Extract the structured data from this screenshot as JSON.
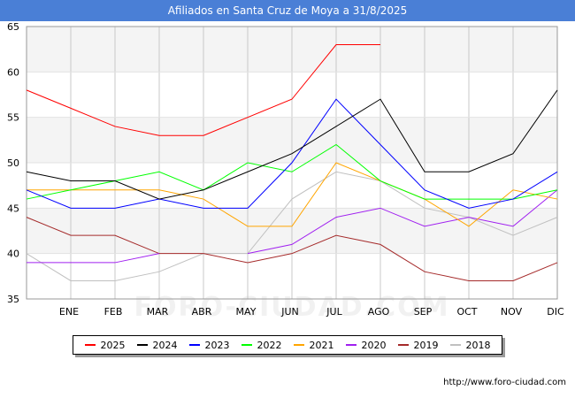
{
  "window": {
    "title": "Afiliados en Santa Cruz de Moya a 31/8/2025"
  },
  "watermark": "FORO-CIUDAD.COM",
  "source": "http://www.foro-ciudad.com",
  "chart_data": {
    "type": "line",
    "title": "Afiliados en Santa Cruz de Moya a 31/8/2025",
    "xlabel": "",
    "ylabel": "",
    "categories": [
      "",
      "ENE",
      "FEB",
      "MAR",
      "ABR",
      "MAY",
      "JUN",
      "JUL",
      "AGO",
      "SEP",
      "OCT",
      "NOV",
      "DIC"
    ],
    "ylim": [
      35,
      65
    ],
    "yticks": [
      35,
      40,
      45,
      50,
      55,
      60,
      65
    ],
    "grid": true,
    "legend_position": "bottom",
    "series": [
      {
        "name": "2025",
        "color": "#ff0000",
        "values": [
          58,
          56,
          54,
          53,
          53,
          55,
          57,
          63,
          63,
          null,
          null,
          null,
          null
        ]
      },
      {
        "name": "2024",
        "color": "#000000",
        "values": [
          49,
          48,
          48,
          46,
          47,
          49,
          51,
          54,
          57,
          49,
          49,
          51,
          58
        ]
      },
      {
        "name": "2023",
        "color": "#0000ff",
        "values": [
          47,
          45,
          45,
          46,
          45,
          45,
          50,
          57,
          52,
          47,
          45,
          46,
          49
        ]
      },
      {
        "name": "2022",
        "color": "#00ff00",
        "values": [
          46,
          47,
          48,
          49,
          47,
          50,
          49,
          52,
          48,
          46,
          46,
          46,
          47
        ]
      },
      {
        "name": "2021",
        "color": "#ffa500",
        "values": [
          47,
          47,
          47,
          47,
          46,
          43,
          43,
          50,
          48,
          46,
          43,
          47,
          46
        ]
      },
      {
        "name": "2020",
        "color": "#a020f0",
        "values": [
          39,
          39,
          39,
          40,
          null,
          40,
          41,
          44,
          45,
          43,
          44,
          43,
          47
        ]
      },
      {
        "name": "2019",
        "color": "#a52a2a",
        "values": [
          44,
          42,
          42,
          40,
          40,
          39,
          40,
          42,
          41,
          38,
          37,
          37,
          39
        ]
      },
      {
        "name": "2018",
        "color": "#c0c0c0",
        "values": [
          40,
          37,
          37,
          38,
          40,
          40,
          46,
          49,
          48,
          45,
          44,
          42,
          44
        ]
      }
    ]
  }
}
